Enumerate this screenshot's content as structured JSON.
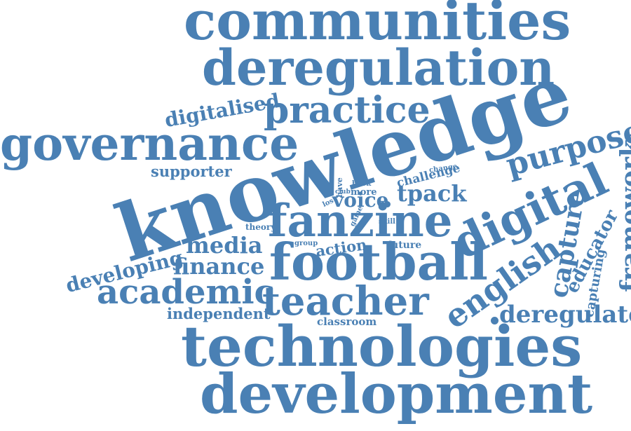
{
  "color": "#4a80b4",
  "background": "#ffffff",
  "words": {
    "communities": "communities",
    "deregulation": "deregulation",
    "digitalised": "digitalised",
    "practice": "practice",
    "knowledge": "knowledge",
    "governance": "governance",
    "purpose": "purpose",
    "framework": "framework",
    "supporter": "supporter",
    "challenge": "challenge",
    "change": "change",
    "have": "have",
    "book": "book",
    "club": "club",
    "more": "more",
    "lost": "lost",
    "voice": "voice",
    "tpack": "tpack",
    "fanzine": "fanzine",
    "digital": "digital",
    "game": "game",
    "skill": "skill",
    "theory": "theory",
    "media": "media",
    "group": "group",
    "action": "action",
    "future": "future",
    "capture": "capture",
    "educator": "educator",
    "developing": "developing",
    "finance": "finance",
    "football": "football",
    "english": "english",
    "capturing": "capturing",
    "academic": "academic",
    "teacher": "teacher",
    "independent": "independent",
    "classroom": "classroom",
    "deregulated": "deregulated",
    "technologies": "technologies",
    "development": "development"
  }
}
